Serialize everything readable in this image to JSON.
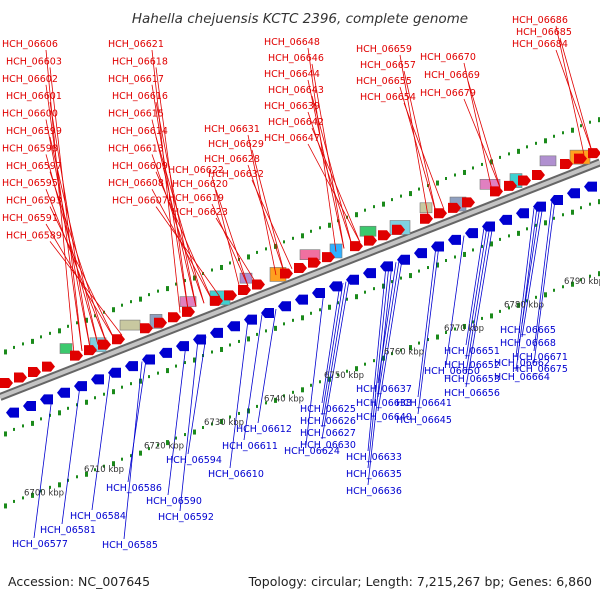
{
  "title": "Hahella chejuensis KCTC 2396, complete genome",
  "footer": {
    "accession": "Accession: NC_007645",
    "summary": "Topology: circular; Length: 7,215,267 bp; Genes: 6,860"
  },
  "colors": {
    "forward": "#e00000",
    "reverse": "#0000d0",
    "backbone": "#8c8c8c",
    "tick": "#1a8a1a"
  },
  "axis": {
    "ticks": [
      {
        "label": "6700 kbp",
        "pos": 6700
      },
      {
        "label": "6710 kbp",
        "pos": 6710
      },
      {
        "label": "6720 kbp",
        "pos": 6720
      },
      {
        "label": "6730 kbp",
        "pos": 6730
      },
      {
        "label": "6740 kbp",
        "pos": 6740
      },
      {
        "label": "6750 kbp",
        "pos": 6750
      },
      {
        "label": "6760 kbp",
        "pos": 6760
      },
      {
        "label": "6770 kbp",
        "pos": 6770
      },
      {
        "label": "6780 kbp",
        "pos": 6780
      },
      {
        "label": "6790 kbp",
        "pos": 6790
      }
    ]
  },
  "forward_labels": [
    "HCH_06606",
    "HCH_06603",
    "HCH_06602",
    "HCH_06601",
    "HCH_06600",
    "HCH_06599",
    "HCH_06598",
    "HCH_06597",
    "HCH_06595",
    "HCH_06593",
    "HCH_06591",
    "HCH_06589",
    "HCH_06621",
    "HCH_06618",
    "HCH_06617",
    "HCH_06616",
    "HCH_06615",
    "HCH_06614",
    "HCH_06613",
    "HCH_06609",
    "HCH_06608",
    "HCH_06607",
    "HCH_06622",
    "HCH_06620",
    "HCH_06619",
    "HCH_06623",
    "HCH_06631",
    "HCH_06629",
    "HCH_06628",
    "HCH_06632",
    "HCH_06648",
    "HCH_06646",
    "HCH_06644",
    "HCH_06643",
    "HCH_06639",
    "HCH_06642",
    "HCH_06647",
    "HCH_06659",
    "HCH_06657",
    "HCH_06655",
    "HCH_06654",
    "HCH_06670",
    "HCH_06669",
    "HCH_06679",
    "HCH_06686",
    "HCH_06685",
    "HCH_06684"
  ],
  "reverse_labels": [
    "HCH_06577",
    "HCH_06581",
    "HCH_06584",
    "HCH_06585",
    "HCH_06586",
    "HCH_06590",
    "HCH_06592",
    "HCH_06594",
    "HCH_06610",
    "HCH_06611",
    "HCH_06612",
    "HCH_06624",
    "HCH_06625",
    "HCH_06626",
    "HCH_06627",
    "HCH_06630",
    "HCH_06633",
    "HCH_06635",
    "HCH_06636",
    "HCH_06637",
    "HCH_06638",
    "HCH_06640",
    "HCH_06641",
    "HCH_06645",
    "HCH_06650",
    "HCH_06651",
    "HCH_06652",
    "HCH_06653",
    "HCH_06656",
    "HCH_06662",
    "HCH_06664",
    "HCH_06665",
    "HCH_06668",
    "HCH_06671",
    "HCH_06675"
  ]
}
